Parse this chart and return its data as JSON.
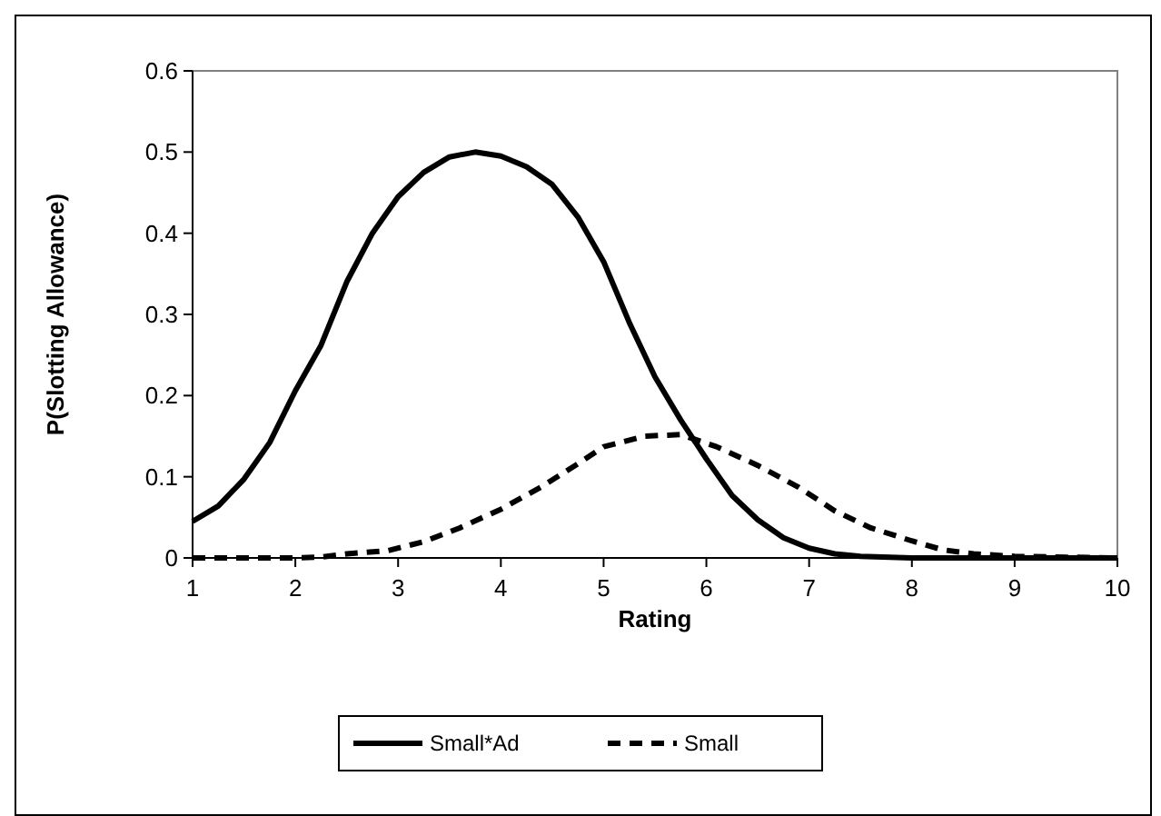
{
  "chart_data": {
    "type": "line",
    "xlabel": "Rating",
    "ylabel": "P(Slotting Allowance)",
    "xlim": [
      1,
      10
    ],
    "xticks": [
      1,
      2,
      3,
      4,
      5,
      6,
      7,
      8,
      9,
      10
    ],
    "ylim": [
      0,
      0.6
    ],
    "yticks": [
      0,
      0.1,
      0.2,
      0.3,
      0.4,
      0.5,
      0.6
    ],
    "grid": false,
    "legend": "bottom",
    "marker": "none",
    "series": [
      {
        "name": "Small*Ad",
        "color": "#000000",
        "line_style": "solid",
        "x": [
          1,
          1.25,
          1.5,
          1.75,
          2,
          2.25,
          2.5,
          2.75,
          3,
          3.25,
          3.5,
          3.75,
          4,
          4.25,
          4.5,
          4.75,
          5,
          5.25,
          5.5,
          5.75,
          6,
          6.25,
          6.5,
          6.75,
          7,
          7.25,
          7.5,
          8,
          9,
          10
        ],
        "values": [
          0.045,
          0.064,
          0.097,
          0.142,
          0.206,
          0.262,
          0.34,
          0.4,
          0.445,
          0.475,
          0.494,
          0.5,
          0.495,
          0.482,
          0.46,
          0.42,
          0.365,
          0.29,
          0.223,
          0.17,
          0.122,
          0.077,
          0.047,
          0.025,
          0.012,
          0.005,
          0.002,
          0,
          0,
          0
        ]
      },
      {
        "name": "Small",
        "color": "#000000",
        "line_style": "dashed",
        "x": [
          1,
          1.5,
          2,
          2.25,
          2.5,
          2.9,
          3.25,
          3.6,
          4,
          4.4,
          4.75,
          5,
          5.4,
          5.75,
          6.1,
          6.5,
          6.9,
          7.25,
          7.6,
          8,
          8.3,
          8.6,
          9,
          10
        ],
        "values": [
          0,
          0,
          0,
          0.001,
          0.005,
          0.009,
          0.02,
          0.037,
          0.06,
          0.088,
          0.116,
          0.137,
          0.15,
          0.152,
          0.137,
          0.114,
          0.087,
          0.058,
          0.037,
          0.021,
          0.01,
          0.005,
          0.002,
          0
        ]
      }
    ]
  }
}
